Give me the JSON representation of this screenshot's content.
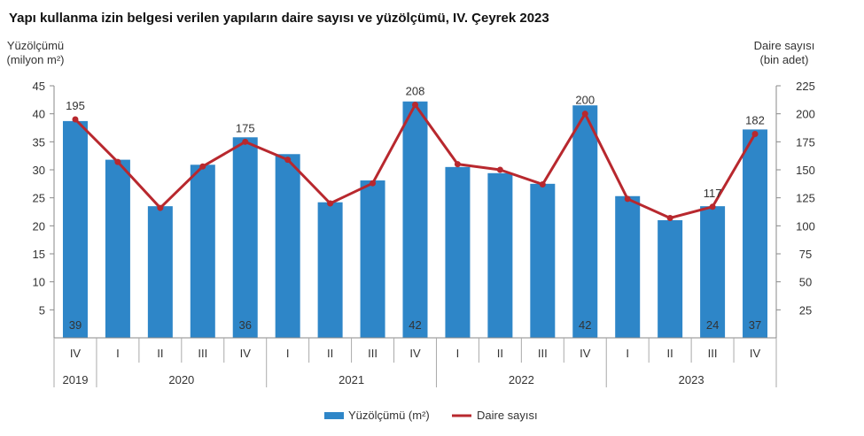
{
  "title": "Yapı kullanma izin belgesi verilen yapıların daire sayısı ve yüzölçümü, IV. Çeyrek 2023",
  "chart_data": {
    "type": "bar",
    "left_axis_label": [
      "Yüzölçümü",
      "(milyon m²)"
    ],
    "right_axis_label": [
      "Daire sayısı",
      "(bin adet)"
    ],
    "left_ylim": [
      0,
      45
    ],
    "left_ticks": [
      "5",
      "10",
      "15",
      "20",
      "25",
      "30",
      "35",
      "40",
      "45"
    ],
    "right_ylim": [
      0,
      225
    ],
    "right_ticks": [
      "25",
      "50",
      "75",
      "100",
      "125",
      "150",
      "175",
      "200",
      "225"
    ],
    "quarters": [
      "IV",
      "I",
      "II",
      "III",
      "IV",
      "I",
      "II",
      "III",
      "IV",
      "I",
      "II",
      "III",
      "IV",
      "I",
      "II",
      "III",
      "IV"
    ],
    "years": [
      {
        "label": "2019",
        "span": 1
      },
      {
        "label": "2020",
        "span": 4
      },
      {
        "label": "2021",
        "span": 4
      },
      {
        "label": "2022",
        "span": 4
      },
      {
        "label": "2023",
        "span": 4
      }
    ],
    "series": [
      {
        "name": "Yüzölçümü (m²)",
        "axis": "left",
        "type": "bar",
        "color": "#2E86C8",
        "values": [
          38.7,
          31.8,
          23.5,
          30.9,
          35.8,
          32.8,
          24.2,
          28.1,
          42.2,
          30.5,
          29.4,
          27.5,
          41.5,
          25.3,
          21.0,
          23.5,
          37.2
        ],
        "labels": [
          "39",
          "",
          "",
          "",
          "36",
          "",
          "",
          "",
          "42",
          "",
          "",
          "",
          "42",
          "",
          "",
          "24",
          "37"
        ]
      },
      {
        "name": "Daire sayısı",
        "axis": "right",
        "type": "line",
        "color": "#B8282E",
        "values": [
          195,
          157,
          116,
          153,
          175,
          159,
          120,
          138,
          208,
          155,
          150,
          137,
          200,
          124,
          107,
          117,
          182
        ],
        "labels": [
          "195",
          "",
          "",
          "",
          "175",
          "",
          "",
          "",
          "208",
          "",
          "",
          "",
          "200",
          "",
          "",
          "117",
          "182"
        ]
      }
    ],
    "legend": [
      {
        "label": "Yüzölçümü (m²)",
        "kind": "bar"
      },
      {
        "label": "Daire sayısı",
        "kind": "line"
      }
    ],
    "legend_position": "bottom-center",
    "grid": false
  }
}
